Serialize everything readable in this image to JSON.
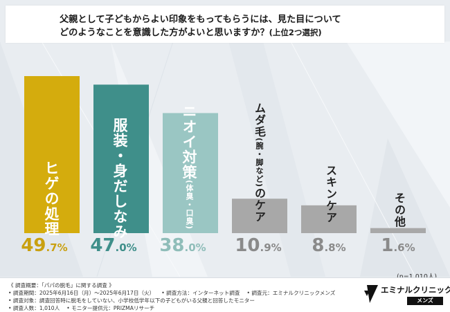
{
  "title": {
    "line1": "父親として子どもからよい印象をもってもらうには、見た目について",
    "line2": "どのようなことを意識した方がよいと思いますか？",
    "line2_sub": "(上位2つ選択)"
  },
  "chart_data": {
    "type": "bar",
    "categories": [
      "ヒゲの処理",
      "服装・身だしなみ",
      "ニオイ対策(体臭・口臭)",
      "ムダ毛(腕・脚など)のケア",
      "スキンケア",
      "その他"
    ],
    "values": [
      49.7,
      47.0,
      38.0,
      10.9,
      8.8,
      1.6
    ],
    "value_labels": [
      {
        "int": "49",
        "dec": ".7",
        "pct": "%"
      },
      {
        "int": "47",
        "dec": ".0",
        "pct": "%"
      },
      {
        "int": "38",
        "dec": ".0",
        "pct": "%"
      },
      {
        "int": "10",
        "dec": ".9",
        "pct": "%"
      },
      {
        "int": "8",
        "dec": ".8",
        "pct": "%"
      },
      {
        "int": "1",
        "dec": ".6",
        "pct": "%"
      }
    ],
    "bar_colors": [
      "#d4ac0d",
      "#3f8f8a",
      "#9ac6c3",
      "#a8a8a8",
      "#a8a8a8",
      "#a8a8a8"
    ],
    "label_colors": [
      "#c9a010",
      "#3f8f8a",
      "#8fbdb9",
      "#8a8a8a",
      "#8a8a8a",
      "#8a8a8a"
    ],
    "ylim": [
      0,
      55
    ],
    "sample_note": "(n=1,010人)"
  },
  "bar_texts": {
    "b1": "ヒゲの処理",
    "b2": "服装・身だしなみ",
    "b3_main": "ニオイ対策",
    "b3_sub": "(体臭・口臭)",
    "b4_main1": "ムダ毛",
    "b4_sub": "(腕・脚など)",
    "b4_main2": "のケア",
    "b5": "スキンケア",
    "b6": "その他"
  },
  "footer": {
    "line1": "《 調査概要：「パパの脱毛」に関する調査 》",
    "line2a": "• 調査期間：2025年6月16日（月）〜2025年6月17日（火）",
    "line2b": "• 調査方法：インターネット調査",
    "line2c": "• 調査元：エミナルクリニックメンズ",
    "line3": "• 調査対象：調査回答時に脱毛をしていない、小学校低学年以下の子どもがいる父親と回答したモニター",
    "line4a": "• 調査人数：1,010人",
    "line4b": "• モニター提供元：PRIZMAリサーチ"
  },
  "logo": {
    "name": "エミナルクリニック",
    "sub": "メンズ"
  },
  "colors": {
    "bg": "#e9edf1",
    "gold": "#d4ac0d",
    "teal": "#3f8f8a",
    "light_teal": "#9ac6c3",
    "gray": "#a8a8a8"
  }
}
